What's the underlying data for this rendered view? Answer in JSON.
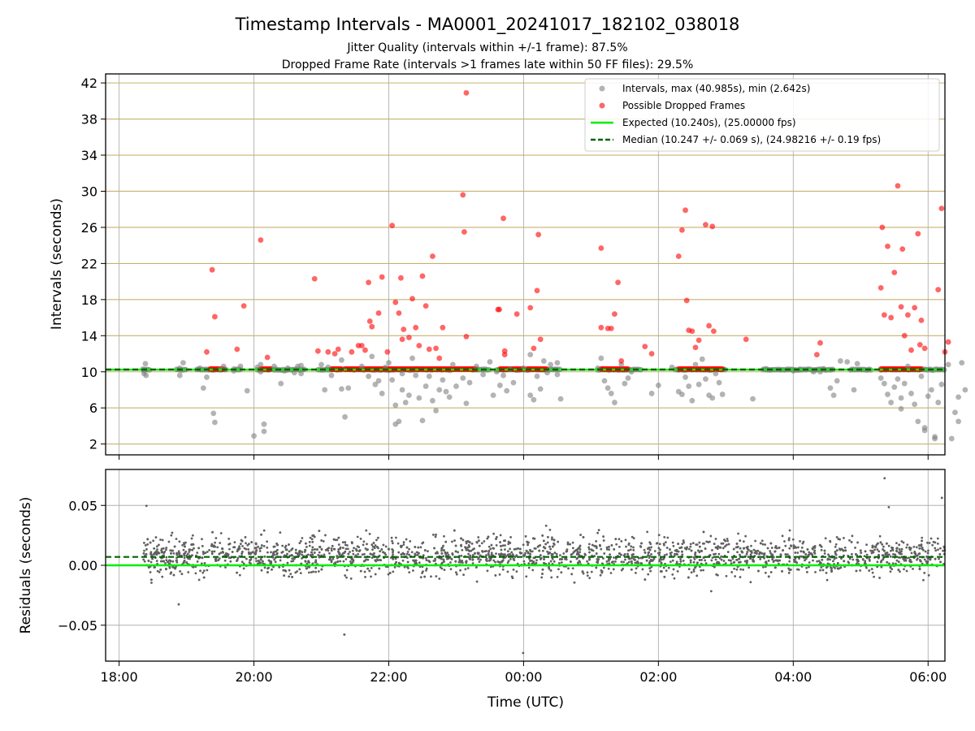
{
  "title": "Timestamp Intervals - MA0001_20241017_182102_038018",
  "subtitle_1": "Jitter Quality (intervals within +/-1 frame): 87.5%",
  "subtitle_2": "Dropped Frame Rate (intervals >1 frames late within 50 FF files): 29.5%",
  "colors": {
    "intervals": "#808080",
    "dropped": "#ff0000",
    "expected": "#00ee00",
    "median": "#006400",
    "top_grid": "#c8b070",
    "grid": "#b0b0b0",
    "residuals": "#606060"
  },
  "chart_data": [
    {
      "type": "scatter",
      "ylabel": "Intervals (seconds)",
      "ylim": [
        0.8,
        43
      ],
      "yticks": [
        "2",
        "6",
        "10",
        "14",
        "18",
        "22",
        "26",
        "30",
        "34",
        "38",
        "42"
      ],
      "grid": true,
      "legend_position": "top-right",
      "series": [
        {
          "name": "Intervals, max (40.985s), min (2.642s)",
          "points": [
            [
              18.37,
              10.1
            ],
            [
              18.37,
              9.8
            ],
            [
              18.39,
              10.9
            ],
            [
              18.4,
              9.6
            ],
            [
              18.9,
              10.4
            ],
            [
              18.9,
              9.6
            ],
            [
              18.95,
              11.0
            ],
            [
              19.2,
              10.4
            ],
            [
              19.25,
              8.2
            ],
            [
              19.3,
              9.4
            ],
            [
              19.4,
              5.4
            ],
            [
              19.42,
              4.4
            ],
            [
              19.5,
              10.3
            ],
            [
              19.55,
              10.6
            ],
            [
              19.7,
              10.1
            ],
            [
              19.8,
              10.6
            ],
            [
              19.9,
              7.9
            ],
            [
              20.0,
              2.9
            ],
            [
              20.05,
              10.5
            ],
            [
              20.1,
              10.8
            ],
            [
              20.1,
              10.0
            ],
            [
              20.15,
              3.4
            ],
            [
              20.15,
              4.2
            ],
            [
              20.3,
              10.6
            ],
            [
              20.4,
              8.7
            ],
            [
              20.45,
              10.1
            ],
            [
              20.5,
              10.4
            ],
            [
              20.6,
              9.9
            ],
            [
              20.65,
              10.6
            ],
            [
              20.7,
              10.7
            ],
            [
              20.7,
              9.8
            ],
            [
              21.0,
              10.8
            ],
            [
              21.05,
              8.0
            ],
            [
              21.1,
              10.5
            ],
            [
              21.15,
              9.6
            ],
            [
              21.3,
              11.3
            ],
            [
              21.3,
              8.1
            ],
            [
              21.35,
              5.0
            ],
            [
              21.4,
              8.2
            ],
            [
              21.6,
              10.6
            ],
            [
              21.7,
              9.5
            ],
            [
              21.75,
              11.7
            ],
            [
              21.8,
              8.6
            ],
            [
              21.85,
              9.0
            ],
            [
              21.9,
              7.6
            ],
            [
              21.95,
              10.5
            ],
            [
              22.0,
              11.0
            ],
            [
              22.05,
              9.1
            ],
            [
              22.1,
              6.3
            ],
            [
              22.1,
              4.2
            ],
            [
              22.15,
              4.5
            ],
            [
              22.2,
              9.8
            ],
            [
              22.2,
              8.0
            ],
            [
              22.25,
              6.6
            ],
            [
              22.3,
              7.4
            ],
            [
              22.35,
              11.5
            ],
            [
              22.4,
              9.6
            ],
            [
              22.45,
              7.1
            ],
            [
              22.5,
              4.6
            ],
            [
              22.55,
              8.4
            ],
            [
              22.6,
              9.5
            ],
            [
              22.65,
              6.8
            ],
            [
              22.7,
              5.7
            ],
            [
              22.75,
              8.0
            ],
            [
              22.8,
              9.1
            ],
            [
              22.85,
              7.8
            ],
            [
              22.9,
              7.2
            ],
            [
              22.95,
              10.8
            ],
            [
              23.0,
              8.4
            ],
            [
              23.1,
              9.3
            ],
            [
              23.15,
              6.5
            ],
            [
              23.2,
              8.8
            ],
            [
              23.3,
              10.6
            ],
            [
              23.4,
              9.7
            ],
            [
              23.5,
              11.1
            ],
            [
              23.55,
              7.4
            ],
            [
              23.6,
              10.0
            ],
            [
              23.65,
              8.5
            ],
            [
              23.7,
              9.6
            ],
            [
              23.75,
              7.9
            ],
            [
              23.8,
              10.3
            ],
            [
              23.85,
              8.8
            ],
            [
              24.0,
              10.4
            ],
            [
              24.1,
              11.9
            ],
            [
              24.1,
              7.4
            ],
            [
              24.15,
              6.9
            ],
            [
              24.2,
              9.5
            ],
            [
              24.25,
              8.1
            ],
            [
              24.3,
              11.2
            ],
            [
              24.35,
              9.9
            ],
            [
              24.4,
              10.8
            ],
            [
              24.5,
              11.0
            ],
            [
              24.5,
              9.7
            ],
            [
              24.55,
              7.0
            ],
            [
              25.1,
              10.4
            ],
            [
              25.15,
              11.5
            ],
            [
              25.2,
              9.0
            ],
            [
              25.25,
              8.2
            ],
            [
              25.3,
              7.6
            ],
            [
              25.35,
              6.6
            ],
            [
              25.45,
              10.8
            ],
            [
              25.5,
              8.7
            ],
            [
              25.55,
              9.3
            ],
            [
              25.6,
              10.0
            ],
            [
              25.9,
              7.6
            ],
            [
              26.0,
              8.5
            ],
            [
              26.2,
              10.5
            ],
            [
              26.3,
              7.8
            ],
            [
              26.35,
              7.5
            ],
            [
              26.4,
              9.4
            ],
            [
              26.45,
              8.4
            ],
            [
              26.5,
              6.8
            ],
            [
              26.55,
              10.8
            ],
            [
              26.6,
              8.6
            ],
            [
              26.65,
              11.4
            ],
            [
              26.7,
              9.2
            ],
            [
              26.75,
              7.4
            ],
            [
              26.8,
              7.1
            ],
            [
              26.85,
              9.8
            ],
            [
              26.9,
              8.8
            ],
            [
              26.95,
              7.5
            ],
            [
              27.4,
              7.0
            ],
            [
              27.6,
              10.3
            ],
            [
              28.0,
              10.1
            ],
            [
              28.1,
              10.3
            ],
            [
              28.3,
              10.0
            ],
            [
              28.4,
              10.0
            ],
            [
              28.45,
              10.3
            ],
            [
              28.55,
              8.2
            ],
            [
              28.6,
              7.4
            ],
            [
              28.65,
              9.0
            ],
            [
              28.7,
              11.2
            ],
            [
              28.8,
              11.1
            ],
            [
              28.9,
              8.0
            ],
            [
              28.95,
              10.9
            ],
            [
              29.3,
              9.3
            ],
            [
              29.35,
              8.7
            ],
            [
              29.4,
              7.5
            ],
            [
              29.45,
              6.6
            ],
            [
              29.5,
              8.3
            ],
            [
              29.55,
              9.2
            ],
            [
              29.6,
              7.1
            ],
            [
              29.6,
              5.9
            ],
            [
              29.65,
              8.7
            ],
            [
              29.7,
              10.6
            ],
            [
              29.75,
              7.6
            ],
            [
              29.8,
              6.4
            ],
            [
              29.85,
              4.5
            ],
            [
              29.9,
              9.5
            ],
            [
              29.95,
              3.5
            ],
            [
              29.95,
              3.8
            ],
            [
              30.0,
              7.3
            ],
            [
              30.05,
              8.0
            ],
            [
              30.1,
              2.8
            ],
            [
              30.1,
              2.6
            ],
            [
              30.15,
              6.6
            ],
            [
              30.2,
              8.6
            ],
            [
              30.3,
              10.8
            ],
            [
              30.35,
              2.6
            ],
            [
              30.4,
              5.5
            ],
            [
              30.45,
              4.5
            ],
            [
              30.45,
              7.2
            ],
            [
              30.5,
              11.0
            ],
            [
              30.55,
              8.0
            ]
          ]
        },
        {
          "name": "Possible Dropped Frames",
          "points": [
            [
              19.3,
              12.2
            ],
            [
              19.38,
              21.3
            ],
            [
              19.42,
              16.1
            ],
            [
              19.75,
              12.5
            ],
            [
              19.85,
              17.3
            ],
            [
              20.1,
              24.6
            ],
            [
              20.2,
              11.6
            ],
            [
              20.9,
              20.3
            ],
            [
              20.95,
              12.3
            ],
            [
              21.1,
              12.2
            ],
            [
              21.2,
              12.0
            ],
            [
              21.25,
              12.5
            ],
            [
              21.45,
              12.2
            ],
            [
              21.55,
              12.9
            ],
            [
              21.6,
              12.9
            ],
            [
              21.65,
              12.4
            ],
            [
              21.7,
              19.9
            ],
            [
              21.72,
              15.6
            ],
            [
              21.75,
              15.0
            ],
            [
              21.85,
              16.5
            ],
            [
              21.9,
              20.5
            ],
            [
              21.98,
              12.2
            ],
            [
              22.05,
              26.2
            ],
            [
              22.1,
              17.7
            ],
            [
              22.15,
              16.5
            ],
            [
              22.18,
              20.4
            ],
            [
              22.2,
              13.6
            ],
            [
              22.22,
              14.7
            ],
            [
              22.3,
              13.8
            ],
            [
              22.35,
              18.1
            ],
            [
              22.4,
              14.9
            ],
            [
              22.45,
              12.9
            ],
            [
              22.5,
              20.6
            ],
            [
              22.55,
              17.3
            ],
            [
              22.6,
              12.5
            ],
            [
              22.65,
              22.8
            ],
            [
              22.7,
              12.6
            ],
            [
              22.75,
              11.5
            ],
            [
              22.8,
              14.9
            ],
            [
              23.1,
              29.6
            ],
            [
              23.12,
              25.5
            ],
            [
              23.15,
              40.9
            ],
            [
              23.15,
              13.9
            ],
            [
              23.62,
              16.9
            ],
            [
              23.64,
              16.9
            ],
            [
              23.7,
              27.0
            ],
            [
              23.72,
              12.3
            ],
            [
              23.72,
              11.9
            ],
            [
              23.9,
              16.4
            ],
            [
              24.1,
              17.1
            ],
            [
              24.15,
              12.6
            ],
            [
              24.2,
              19.0
            ],
            [
              24.22,
              25.2
            ],
            [
              24.25,
              13.6
            ],
            [
              25.15,
              23.7
            ],
            [
              25.15,
              14.9
            ],
            [
              25.25,
              14.8
            ],
            [
              25.3,
              14.8
            ],
            [
              25.35,
              16.4
            ],
            [
              25.4,
              19.9
            ],
            [
              25.45,
              11.2
            ],
            [
              25.8,
              12.8
            ],
            [
              25.9,
              12.0
            ],
            [
              26.3,
              22.8
            ],
            [
              26.35,
              25.7
            ],
            [
              26.4,
              27.9
            ],
            [
              26.42,
              17.9
            ],
            [
              26.45,
              14.6
            ],
            [
              26.5,
              14.5
            ],
            [
              26.55,
              12.7
            ],
            [
              26.6,
              13.5
            ],
            [
              26.7,
              26.3
            ],
            [
              26.75,
              15.1
            ],
            [
              26.8,
              26.1
            ],
            [
              26.82,
              14.5
            ],
            [
              27.3,
              13.6
            ],
            [
              28.35,
              11.9
            ],
            [
              28.4,
              13.2
            ],
            [
              29.3,
              19.3
            ],
            [
              29.32,
              26.0
            ],
            [
              29.35,
              16.3
            ],
            [
              29.4,
              23.9
            ],
            [
              29.45,
              16.0
            ],
            [
              29.5,
              21.0
            ],
            [
              29.55,
              30.6
            ],
            [
              29.6,
              17.2
            ],
            [
              29.62,
              23.6
            ],
            [
              29.65,
              14.0
            ],
            [
              29.7,
              16.3
            ],
            [
              29.75,
              12.4
            ],
            [
              29.8,
              17.1
            ],
            [
              29.85,
              25.3
            ],
            [
              29.88,
              13.0
            ],
            [
              29.9,
              15.7
            ],
            [
              29.95,
              12.6
            ],
            [
              30.15,
              19.1
            ],
            [
              30.2,
              28.1
            ],
            [
              30.25,
              12.2
            ],
            [
              30.3,
              13.3
            ]
          ]
        },
        {
          "name": "Expected (10.240s), (25.00000 fps)",
          "y": 10.24
        },
        {
          "name": "Median (10.247 +/- 0.069 s), (24.98216 +/- 0.19 fps)",
          "y": 10.247
        }
      ]
    },
    {
      "type": "scatter",
      "ylabel": "Residuals (seconds)",
      "xlabel": "Time (UTC)",
      "xlim": [
        17.8,
        30.25
      ],
      "ylim": [
        -0.08,
        0.08
      ],
      "yticks": [
        "−0.05",
        "0.00",
        "0.05"
      ],
      "xticks": [
        "18:00",
        "20:00",
        "22:00",
        "00:00",
        "02:00",
        "04:00",
        "06:00"
      ],
      "grid": true,
      "series": [
        {
          "name": "Residuals",
          "x_range": [
            18.35,
            30.25
          ],
          "count": 2600
        },
        {
          "name": "Expected",
          "y": 0.0
        },
        {
          "name": "Median",
          "y": 0.007
        }
      ]
    }
  ]
}
